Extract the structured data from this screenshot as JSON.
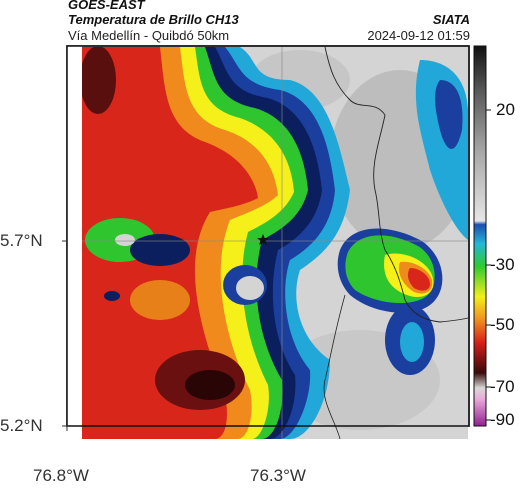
{
  "header": {
    "satellite": "GOES-EAST",
    "product": "Temperatura de Brillo CH13",
    "route": "Vía Medellín - Quibdó 50km",
    "source": "SIATA",
    "datetime": "2024-09-12 01:59"
  },
  "axes": {
    "x_ticks": [
      "76.8°W",
      "76.3°W"
    ],
    "y_ticks": [
      "5.7°N",
      "5.2°N"
    ]
  },
  "colorbar": {
    "ticks": [
      "20",
      "-30",
      "-50",
      "-70",
      "-90"
    ],
    "unit_hidden": "",
    "range": [
      -95,
      40
    ]
  },
  "map": {
    "marker": "star-marker",
    "colors": {
      "warm_grey": "#d8d8d8",
      "cyan": "#22a8d8",
      "blue": "#1a3f9e",
      "navy": "#0b1e5e",
      "green": "#2fc52f",
      "yellow": "#f5f019",
      "orange": "#f08a1c",
      "red": "#d8261a",
      "darkred": "#5a0f0f",
      "magenta": "#b040a0"
    }
  }
}
